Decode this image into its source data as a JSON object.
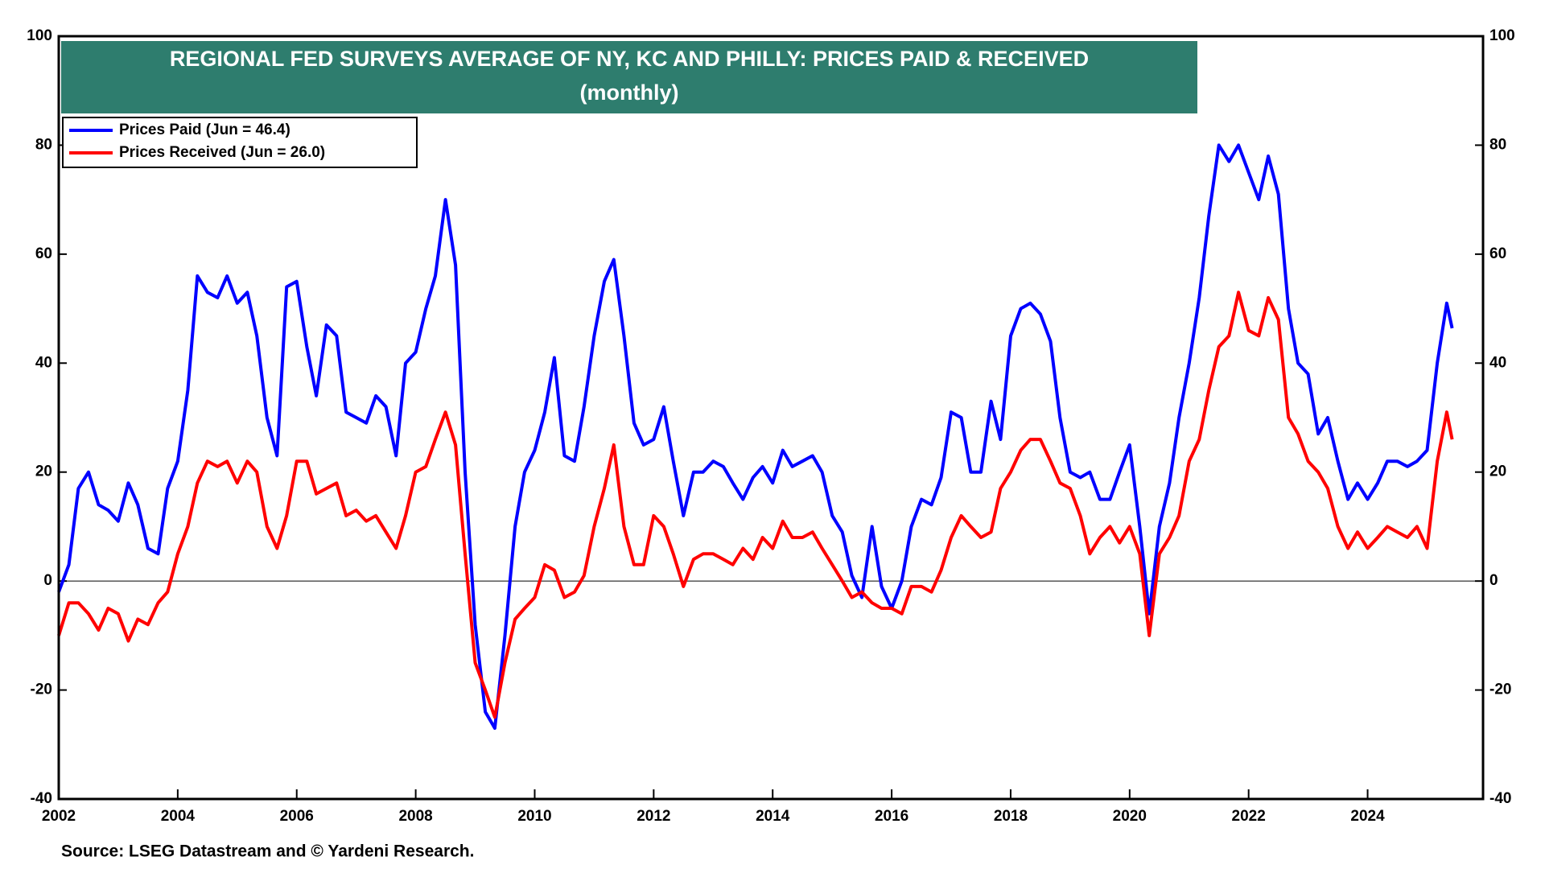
{
  "chart_data": {
    "type": "line",
    "title": "REGIONAL FED SURVEYS AVERAGE OF NY, KC AND PHILLY: PRICES PAID & RECEIVED",
    "subtitle": "(monthly)",
    "source": "Source: LSEG Datastream and © Yardeni Research.",
    "title_color": "#2e7d6e",
    "x": [
      2002,
      2002.17,
      2002.33,
      2002.5,
      2002.67,
      2002.83,
      2003,
      2003.17,
      2003.33,
      2003.5,
      2003.67,
      2003.83,
      2004,
      2004.17,
      2004.33,
      2004.5,
      2004.67,
      2004.83,
      2005,
      2005.17,
      2005.33,
      2005.5,
      2005.67,
      2005.83,
      2006,
      2006.17,
      2006.33,
      2006.5,
      2006.67,
      2006.83,
      2007,
      2007.17,
      2007.33,
      2007.5,
      2007.67,
      2007.83,
      2008,
      2008.17,
      2008.33,
      2008.5,
      2008.67,
      2008.83,
      2009,
      2009.17,
      2009.33,
      2009.5,
      2009.67,
      2009.83,
      2010,
      2010.17,
      2010.33,
      2010.5,
      2010.67,
      2010.83,
      2011,
      2011.17,
      2011.33,
      2011.5,
      2011.67,
      2011.83,
      2012,
      2012.17,
      2012.33,
      2012.5,
      2012.67,
      2012.83,
      2013,
      2013.17,
      2013.33,
      2013.5,
      2013.67,
      2013.83,
      2014,
      2014.17,
      2014.33,
      2014.5,
      2014.67,
      2014.83,
      2015,
      2015.17,
      2015.33,
      2015.5,
      2015.67,
      2015.83,
      2016,
      2016.17,
      2016.33,
      2016.5,
      2016.67,
      2016.83,
      2017,
      2017.17,
      2017.33,
      2017.5,
      2017.67,
      2017.83,
      2018,
      2018.17,
      2018.33,
      2018.5,
      2018.67,
      2018.83,
      2019,
      2019.17,
      2019.33,
      2019.5,
      2019.67,
      2019.83,
      2020,
      2020.17,
      2020.33,
      2020.5,
      2020.67,
      2020.83,
      2021,
      2021.17,
      2021.33,
      2021.5,
      2021.67,
      2021.83,
      2022,
      2022.17,
      2022.33,
      2022.5,
      2022.67,
      2022.83,
      2023,
      2023.17,
      2023.33,
      2023.5,
      2023.67,
      2023.83,
      2024,
      2024.17,
      2024.33,
      2024.5,
      2024.67,
      2024.83,
      2025,
      2025.17,
      2025.33,
      2025.42
    ],
    "series": [
      {
        "name": "Prices Paid (Jun = 46.4)",
        "color": "#0000ff",
        "values": [
          -2,
          3,
          17,
          20,
          14,
          13,
          11,
          18,
          14,
          6,
          5,
          17,
          22,
          35,
          56,
          53,
          52,
          56,
          51,
          53,
          45,
          30,
          23,
          54,
          55,
          43,
          34,
          47,
          45,
          31,
          30,
          29,
          34,
          32,
          23,
          40,
          42,
          50,
          56,
          70,
          58,
          20,
          -8,
          -24,
          -27,
          -10,
          10,
          20,
          24,
          31,
          41,
          23,
          22,
          32,
          45,
          55,
          59,
          45,
          29,
          25,
          26,
          32,
          22,
          12,
          20,
          20,
          22,
          21,
          18,
          15,
          19,
          21,
          18,
          24,
          21,
          22,
          23,
          20,
          12,
          9,
          1,
          -3,
          10,
          -1,
          -5,
          0,
          10,
          15,
          14,
          19,
          31,
          30,
          20,
          20,
          33,
          26,
          45,
          50,
          51,
          49,
          44,
          30,
          20,
          19,
          20,
          15,
          15,
          20,
          25,
          10,
          -6,
          10,
          18,
          30,
          40,
          52,
          67,
          80,
          77,
          80,
          75,
          70,
          78,
          71,
          50,
          40,
          38,
          27,
          30,
          22,
          15,
          18,
          15,
          18,
          22,
          22,
          21,
          22,
          24,
          40,
          51,
          46.4
        ]
      },
      {
        "name": "Prices Received (Jun = 26.0)",
        "color": "#ff0000",
        "values": [
          -10,
          -4,
          -4,
          -6,
          -9,
          -5,
          -6,
          -11,
          -7,
          -8,
          -4,
          -2,
          5,
          10,
          18,
          22,
          21,
          22,
          18,
          22,
          20,
          10,
          6,
          12,
          22,
          22,
          16,
          17,
          18,
          12,
          13,
          11,
          12,
          9,
          6,
          12,
          20,
          21,
          26,
          31,
          25,
          5,
          -15,
          -20,
          -25,
          -15,
          -7,
          -5,
          -3,
          3,
          2,
          -3,
          -2,
          1,
          10,
          17,
          25,
          10,
          3,
          3,
          12,
          10,
          5,
          -1,
          4,
          5,
          5,
          4,
          3,
          6,
          4,
          8,
          6,
          11,
          8,
          8,
          9,
          6,
          3,
          0,
          -3,
          -2,
          -4,
          -5,
          -5,
          -6,
          -1,
          -1,
          -2,
          2,
          8,
          12,
          10,
          8,
          9,
          17,
          20,
          24,
          26,
          26,
          22,
          18,
          17,
          12,
          5,
          8,
          10,
          7,
          10,
          5,
          -10,
          5,
          8,
          12,
          22,
          26,
          35,
          43,
          45,
          53,
          46,
          45,
          52,
          48,
          30,
          27,
          22,
          20,
          17,
          10,
          6,
          9,
          6,
          8,
          10,
          9,
          8,
          10,
          6,
          22,
          31,
          26
        ]
      }
    ],
    "xlim": [
      2002,
      2025.94
    ],
    "xticks": [
      2002,
      2004,
      2006,
      2008,
      2010,
      2012,
      2014,
      2016,
      2018,
      2020,
      2022,
      2024
    ],
    "ylim": [
      -40,
      100
    ],
    "yticks": [
      -40,
      -20,
      0,
      20,
      40,
      60,
      80,
      100
    ],
    "legend": "upper left"
  }
}
